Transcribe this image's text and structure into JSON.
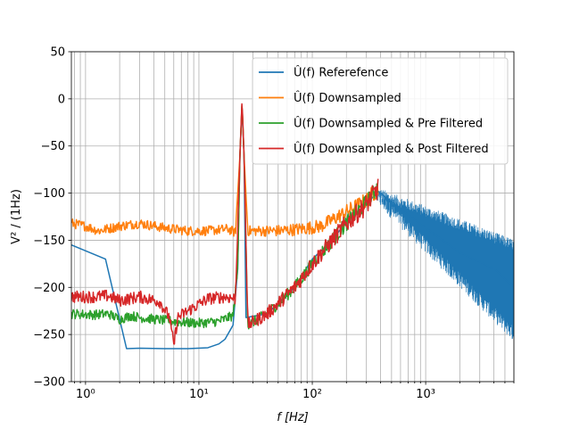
{
  "chart_data": {
    "type": "line",
    "xscale": "log",
    "xlim": [
      0.75,
      6000
    ],
    "ylim": [
      -300,
      50
    ],
    "xlabel": "f [Hz]",
    "ylabel": "V² / (1Hz)",
    "grid": "major-and-minor",
    "legend_position": "top-right",
    "x_ticks": [
      {
        "value": 1,
        "label": "10⁰"
      },
      {
        "value": 10,
        "label": "10¹"
      },
      {
        "value": 100,
        "label": "10²"
      },
      {
        "value": 1000,
        "label": "10³"
      }
    ],
    "y_ticks": [
      {
        "value": 50,
        "label": "50"
      },
      {
        "value": 0,
        "label": "0"
      },
      {
        "value": -50,
        "label": "−50"
      },
      {
        "value": -100,
        "label": "−100"
      },
      {
        "value": -150,
        "label": "−150"
      },
      {
        "value": -200,
        "label": "−200"
      },
      {
        "value": -250,
        "label": "−250"
      },
      {
        "value": -300,
        "label": "−300"
      }
    ],
    "series": [
      {
        "name": "Û(f) Referefence",
        "color": "#1f77b4",
        "noise": 0,
        "points": [
          [
            0.75,
            -155
          ],
          [
            1.5,
            -170
          ],
          [
            2.3,
            -265
          ],
          [
            3,
            -264.5
          ],
          [
            5,
            -265
          ],
          [
            8,
            -265
          ],
          [
            12,
            -264
          ],
          [
            15,
            -260
          ],
          [
            17,
            -255
          ],
          [
            20,
            -240
          ],
          [
            22,
            -180
          ],
          [
            23,
            -60
          ],
          [
            24,
            -10
          ],
          [
            25,
            -60
          ],
          [
            26,
            -232
          ],
          [
            40,
            -228
          ],
          [
            70,
            -200
          ],
          [
            100,
            -170
          ],
          [
            150,
            -150
          ],
          [
            200,
            -130
          ],
          [
            300,
            -112
          ],
          [
            380,
            -98
          ],
          [
            600,
            -117
          ],
          [
            1000,
            -137
          ],
          [
            2000,
            -163
          ],
          [
            4000,
            -180
          ],
          [
            6000,
            -200
          ]
        ],
        "band_segments": [
          {
            "x": [
              380,
              6000
            ],
            "top": [
              -100,
              -155
            ],
            "bottom": [
              -105,
              -250
            ]
          }
        ]
      },
      {
        "name": "Û(f) Downsampled",
        "color": "#ff7f0e",
        "noise": 4,
        "points": [
          [
            0.75,
            -132
          ],
          [
            1,
            -135
          ],
          [
            1.3,
            -140
          ],
          [
            2,
            -135
          ],
          [
            3,
            -132
          ],
          [
            5,
            -137
          ],
          [
            8,
            -140
          ],
          [
            12,
            -140
          ],
          [
            18,
            -138
          ],
          [
            21,
            -142
          ],
          [
            23,
            -60
          ],
          [
            24,
            -5
          ],
          [
            25,
            -60
          ],
          [
            27,
            -140
          ],
          [
            50,
            -140
          ],
          [
            80,
            -138
          ],
          [
            120,
            -135
          ],
          [
            200,
            -120
          ],
          [
            300,
            -108
          ],
          [
            380,
            -95
          ]
        ]
      },
      {
        "name": "Û(f) Downsampled & Pre Filtered",
        "color": "#2ca02c",
        "noise": 4,
        "points": [
          [
            0.75,
            -228
          ],
          [
            1.2,
            -229
          ],
          [
            1.6,
            -228
          ],
          [
            2,
            -234
          ],
          [
            2.5,
            -230
          ],
          [
            3,
            -232
          ],
          [
            5,
            -235
          ],
          [
            7,
            -237
          ],
          [
            10,
            -238
          ],
          [
            15,
            -236
          ],
          [
            20,
            -230
          ],
          [
            22,
            -180
          ],
          [
            23,
            -60
          ],
          [
            24,
            -3
          ],
          [
            25,
            -60
          ],
          [
            27,
            -240
          ],
          [
            40,
            -228
          ],
          [
            70,
            -200
          ],
          [
            100,
            -175
          ],
          [
            150,
            -150
          ],
          [
            200,
            -132
          ],
          [
            300,
            -110
          ],
          [
            380,
            -93
          ]
        ]
      },
      {
        "name": "Û(f) Downsampled & Post Filtered",
        "color": "#d62728",
        "noise": 5,
        "points": [
          [
            0.75,
            -210
          ],
          [
            1.2,
            -210
          ],
          [
            1.6,
            -209
          ],
          [
            2,
            -214
          ],
          [
            3,
            -210
          ],
          [
            4.5,
            -215
          ],
          [
            5.5,
            -232
          ],
          [
            6,
            -262
          ],
          [
            6.5,
            -232
          ],
          [
            8,
            -225
          ],
          [
            12,
            -212
          ],
          [
            17,
            -210
          ],
          [
            21,
            -212
          ],
          [
            23,
            -60
          ],
          [
            24,
            -1
          ],
          [
            25,
            -60
          ],
          [
            27,
            -240
          ],
          [
            40,
            -228
          ],
          [
            70,
            -200
          ],
          [
            100,
            -175
          ],
          [
            150,
            -150
          ],
          [
            200,
            -132
          ],
          [
            300,
            -112
          ],
          [
            380,
            -95
          ]
        ]
      }
    ]
  }
}
